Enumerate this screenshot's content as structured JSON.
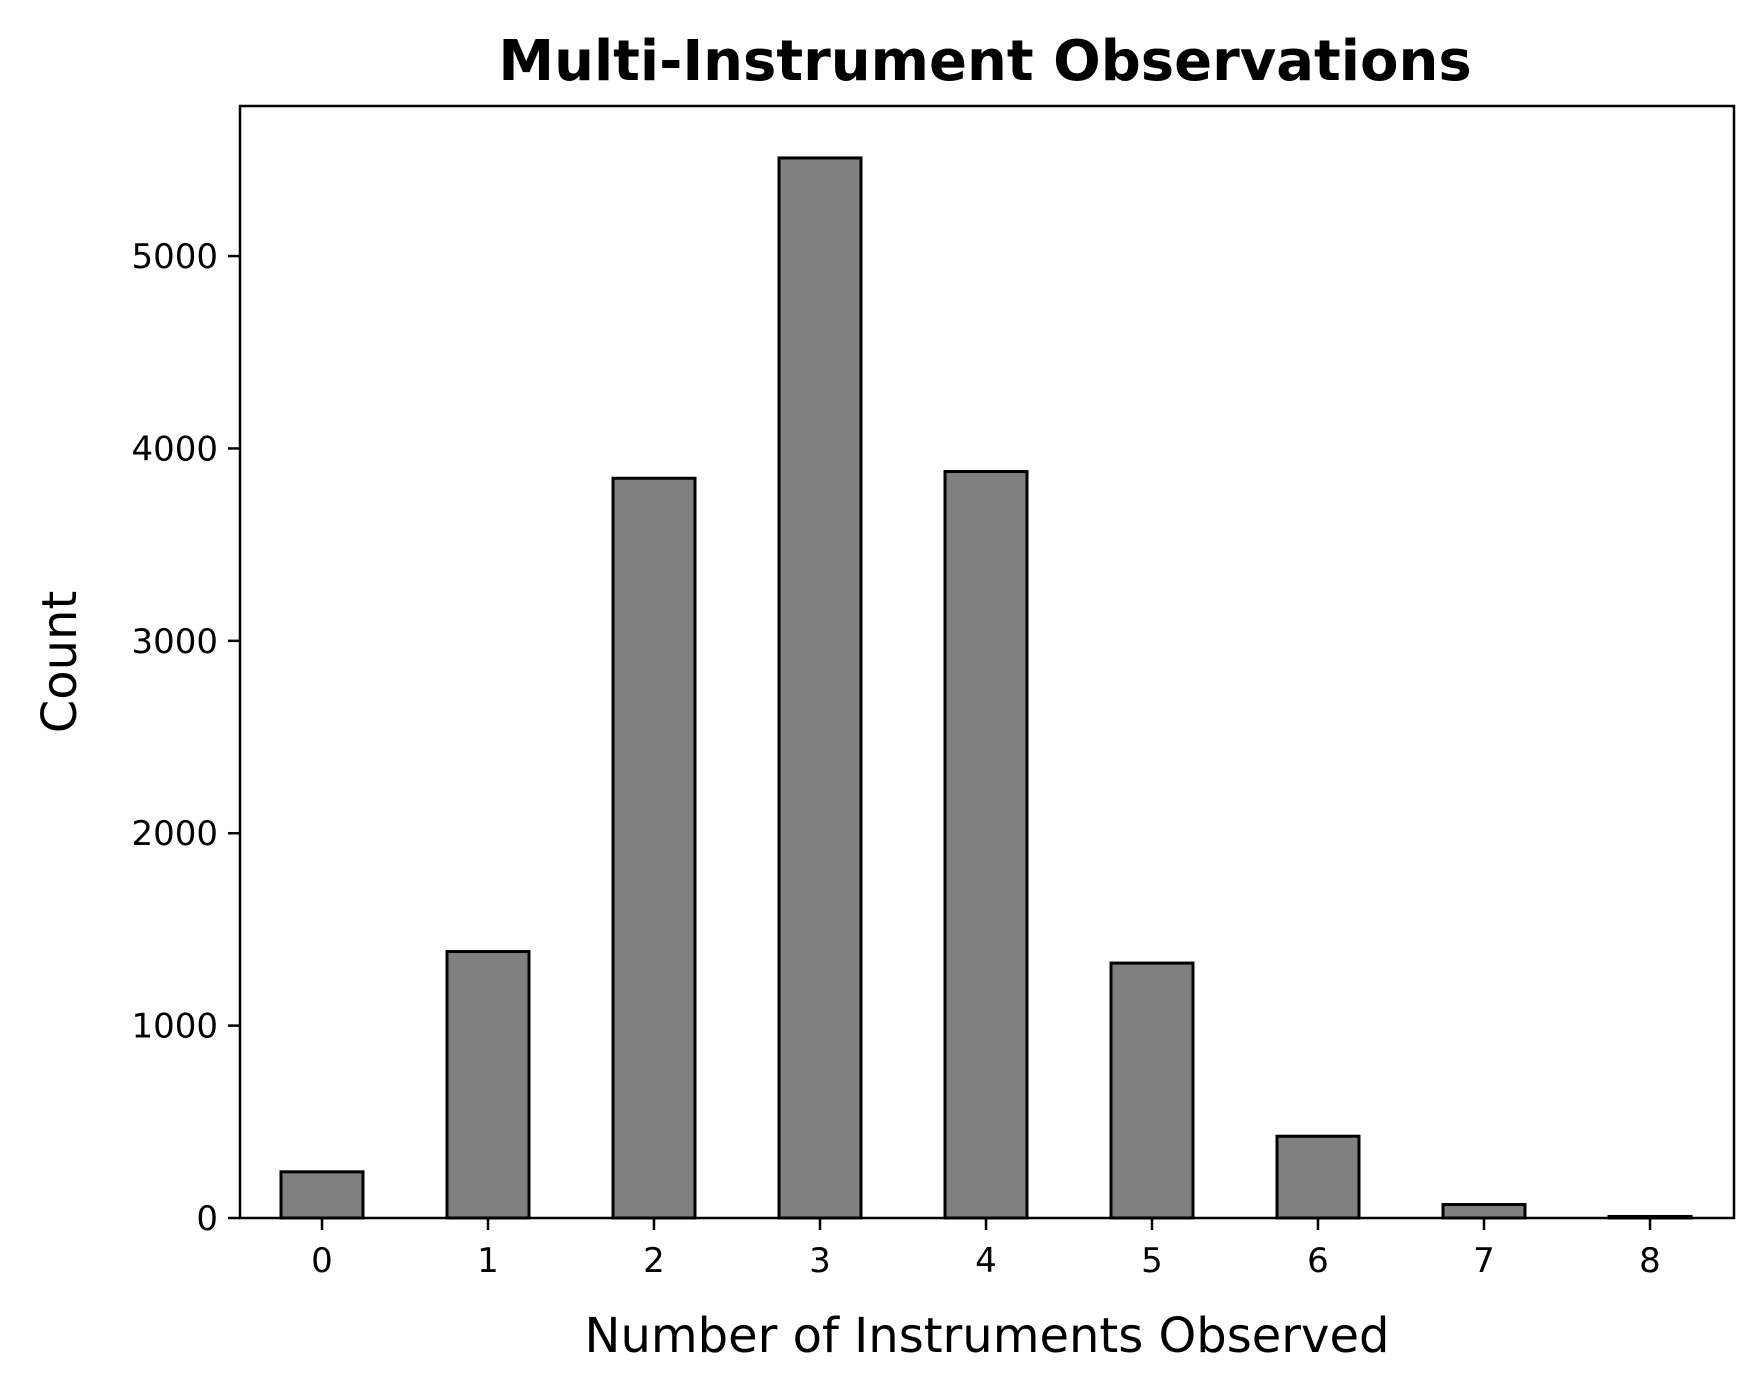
{
  "chart_data": {
    "type": "bar",
    "title": "Multi-Instrument Observations",
    "xlabel": "Number of Instruments Observed",
    "ylabel": "Count",
    "categories": [
      "0",
      "1",
      "2",
      "3",
      "4",
      "5",
      "6",
      "7",
      "8"
    ],
    "values": [
      240,
      1385,
      3845,
      5510,
      3880,
      1325,
      425,
      70,
      8
    ],
    "ylim": [
      0,
      5780
    ],
    "yticks": [
      0,
      1000,
      2000,
      3000,
      4000,
      5000
    ],
    "grid": false,
    "bar_color": "#808080",
    "edge_color": "#000000"
  }
}
